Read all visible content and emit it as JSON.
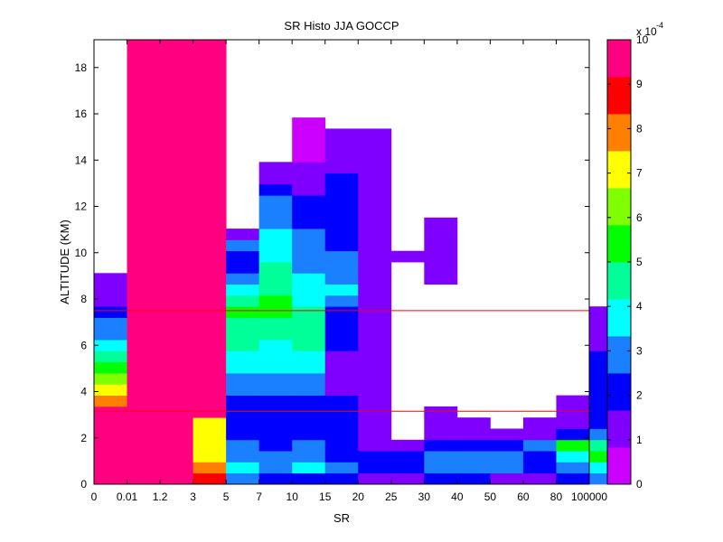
{
  "chart_data": {
    "type": "heatmap",
    "title": "SR Histo JJA GOCCP",
    "xlabel": "SR",
    "ylabel": "ALTITUDE (KM)",
    "x_categories": [
      "0",
      "0.01",
      "1.2",
      "3",
      "5",
      "7",
      "10",
      "15",
      "20",
      "25",
      "30",
      "40",
      "50",
      "60",
      "80",
      "100000"
    ],
    "y_tick_labels": [
      "0",
      "2",
      "4",
      "6",
      "8",
      "10",
      "12",
      "14",
      "16",
      "18"
    ],
    "ylim": [
      0,
      19.2
    ],
    "y_bin_km": 0.48,
    "colorbar": {
      "ticks": [
        "0",
        "1",
        "2",
        "3",
        "4",
        "5",
        "6",
        "7",
        "8",
        "9",
        "10"
      ],
      "scale_label": "x 10",
      "scale_exponent": "-4",
      "range": [
        0,
        10
      ],
      "colors": [
        "#cc00ff",
        "#7f00ff",
        "#0000ff",
        "#1a80ff",
        "#00ffff",
        "#00ff99",
        "#00ff00",
        "#80ff00",
        "#ffff00",
        "#ff8000",
        "#ff0000",
        "#ff0080"
      ]
    },
    "reference_lines_km": [
      7.5,
      3.15
    ],
    "reference_line_color": "#ff0000",
    "columns": [
      {
        "x": "0-0.01",
        "runs": [
          [
            0,
            7,
            10
          ],
          [
            7,
            8,
            9
          ],
          [
            8,
            9,
            8
          ],
          [
            9,
            10,
            7
          ],
          [
            10,
            11,
            6
          ],
          [
            11,
            12,
            5
          ],
          [
            12,
            13,
            4
          ],
          [
            13,
            15,
            3
          ],
          [
            15,
            16,
            2
          ],
          [
            16,
            19,
            1
          ]
        ]
      },
      {
        "x": "0.01-1.2",
        "runs": [
          [
            0,
            40,
            10
          ]
        ]
      },
      {
        "x": "1.2-3",
        "runs": [
          [
            0,
            40,
            10
          ]
        ]
      },
      {
        "x": "3-5",
        "runs": [
          [
            0,
            1,
            9.5
          ],
          [
            1,
            2,
            9
          ],
          [
            2,
            3,
            8
          ],
          [
            3,
            4,
            7.5
          ],
          [
            4,
            6,
            8
          ],
          [
            6,
            40,
            10
          ]
        ]
      },
      {
        "x": "5-7",
        "runs": [
          [
            0,
            1,
            3.5
          ],
          [
            1,
            2,
            4
          ],
          [
            2,
            4,
            3
          ],
          [
            4,
            8,
            2
          ],
          [
            8,
            10,
            3
          ],
          [
            10,
            12,
            4
          ],
          [
            12,
            15,
            5
          ],
          [
            15,
            16,
            5.5
          ],
          [
            16,
            17,
            5
          ],
          [
            17,
            18,
            4
          ],
          [
            18,
            19,
            3
          ],
          [
            19,
            20,
            2
          ],
          [
            20,
            21,
            2
          ],
          [
            21,
            22,
            3
          ],
          [
            22,
            23,
            1
          ]
        ]
      },
      {
        "x": "7-10",
        "runs": [
          [
            0,
            1,
            2
          ],
          [
            1,
            3,
            3
          ],
          [
            3,
            8,
            2
          ],
          [
            8,
            10,
            3
          ],
          [
            10,
            13,
            4
          ],
          [
            13,
            15,
            5
          ],
          [
            15,
            17,
            6
          ],
          [
            17,
            20,
            5
          ],
          [
            20,
            23,
            4
          ],
          [
            23,
            26,
            3
          ],
          [
            26,
            27,
            2
          ],
          [
            27,
            29,
            1
          ]
        ]
      },
      {
        "x": "10-15",
        "runs": [
          [
            0,
            1,
            2
          ],
          [
            1,
            2,
            4
          ],
          [
            2,
            4,
            3
          ],
          [
            4,
            8,
            2
          ],
          [
            8,
            10,
            3
          ],
          [
            10,
            12,
            4
          ],
          [
            12,
            16,
            5
          ],
          [
            16,
            19,
            4
          ],
          [
            19,
            23,
            3
          ],
          [
            23,
            26,
            2
          ],
          [
            26,
            29,
            1
          ],
          [
            29,
            33,
            0.5
          ]
        ]
      },
      {
        "x": "15-20",
        "runs": [
          [
            0,
            1,
            2
          ],
          [
            1,
            2,
            3
          ],
          [
            2,
            8,
            2
          ],
          [
            8,
            12,
            1
          ],
          [
            12,
            16,
            2
          ],
          [
            16,
            17,
            3
          ],
          [
            17,
            18,
            4
          ],
          [
            18,
            21,
            3
          ],
          [
            21,
            26,
            2
          ],
          [
            26,
            28,
            2
          ],
          [
            28,
            32,
            1
          ]
        ]
      },
      {
        "x": "20-25",
        "runs": [
          [
            0,
            1,
            1.5
          ],
          [
            1,
            3,
            2
          ],
          [
            3,
            5,
            1
          ],
          [
            5,
            32,
            1
          ]
        ]
      },
      {
        "x": "25-30",
        "runs": [
          [
            0,
            1,
            1.5
          ],
          [
            1,
            3,
            2
          ],
          [
            3,
            4,
            1
          ],
          [
            20,
            21,
            1
          ]
        ]
      },
      {
        "x": "30-40",
        "runs": [
          [
            0,
            1,
            2
          ],
          [
            1,
            3,
            3
          ],
          [
            3,
            4,
            2
          ],
          [
            4,
            7,
            1
          ],
          [
            18,
            24,
            1
          ]
        ]
      },
      {
        "x": "40-50",
        "runs": [
          [
            0,
            1,
            2
          ],
          [
            1,
            3,
            3
          ],
          [
            3,
            4,
            2
          ],
          [
            4,
            6,
            1
          ]
        ]
      },
      {
        "x": "50-60",
        "runs": [
          [
            0,
            1,
            1.5
          ],
          [
            1,
            3,
            3
          ],
          [
            3,
            4,
            2
          ],
          [
            4,
            5,
            1
          ]
        ]
      },
      {
        "x": "60-70",
        "runs": [
          [
            0,
            1,
            1.5
          ],
          [
            1,
            2,
            2
          ],
          [
            2,
            3,
            2
          ],
          [
            3,
            4,
            3
          ],
          [
            4,
            5,
            1
          ],
          [
            5,
            6,
            1
          ]
        ]
      },
      {
        "x": "70-80",
        "runs": [
          [
            0,
            1,
            2
          ],
          [
            1,
            2,
            3
          ],
          [
            2,
            3,
            4
          ],
          [
            3,
            4,
            5.5
          ],
          [
            4,
            5,
            2
          ],
          [
            5,
            6,
            1
          ],
          [
            6,
            8,
            1
          ]
        ]
      },
      {
        "x": "80-100000",
        "runs": [
          [
            0,
            1,
            3
          ],
          [
            1,
            2,
            4
          ],
          [
            2,
            3,
            6
          ],
          [
            3,
            4,
            5
          ],
          [
            4,
            5,
            3
          ],
          [
            5,
            6,
            2
          ],
          [
            6,
            12,
            2
          ],
          [
            12,
            16,
            1
          ]
        ]
      }
    ]
  }
}
